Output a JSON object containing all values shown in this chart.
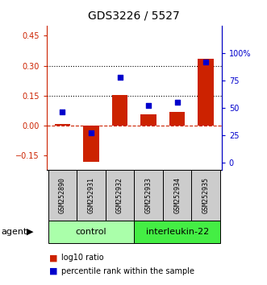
{
  "title": "GDS3226 / 5527",
  "samples": [
    "GSM252890",
    "GSM252931",
    "GSM252932",
    "GSM252933",
    "GSM252934",
    "GSM252935"
  ],
  "log10_ratio": [
    0.01,
    -0.18,
    0.155,
    0.055,
    0.07,
    0.335
  ],
  "percentile_rank": [
    46,
    27,
    78,
    52,
    55,
    92
  ],
  "groups": [
    {
      "label": "control",
      "indices": [
        0,
        1,
        2
      ],
      "color": "#aaffaa"
    },
    {
      "label": "interleukin-22",
      "indices": [
        3,
        4,
        5
      ],
      "color": "#44ee44"
    }
  ],
  "ylim_left": [
    -0.22,
    0.5
  ],
  "ylim_right": [
    -6.25,
    125
  ],
  "yticks_left": [
    -0.15,
    0.0,
    0.15,
    0.3,
    0.45
  ],
  "yticks_right": [
    0,
    25,
    50,
    75,
    100
  ],
  "hlines": [
    0.15,
    0.3
  ],
  "bar_color": "#cc2200",
  "dot_color": "#0000cc",
  "zero_line_color": "#cc2200",
  "bar_face_color": "#cc2200",
  "title_fontsize": 10,
  "tick_fontsize": 7,
  "axis_label_fontsize": 7,
  "sample_fontsize": 6,
  "group_fontsize": 8,
  "legend_fontsize": 7,
  "agent_fontsize": 8,
  "bg_color": "#ffffff",
  "gray_box_color": "#cccccc",
  "light_green": "#aaffaa",
  "dark_green": "#44ff44"
}
